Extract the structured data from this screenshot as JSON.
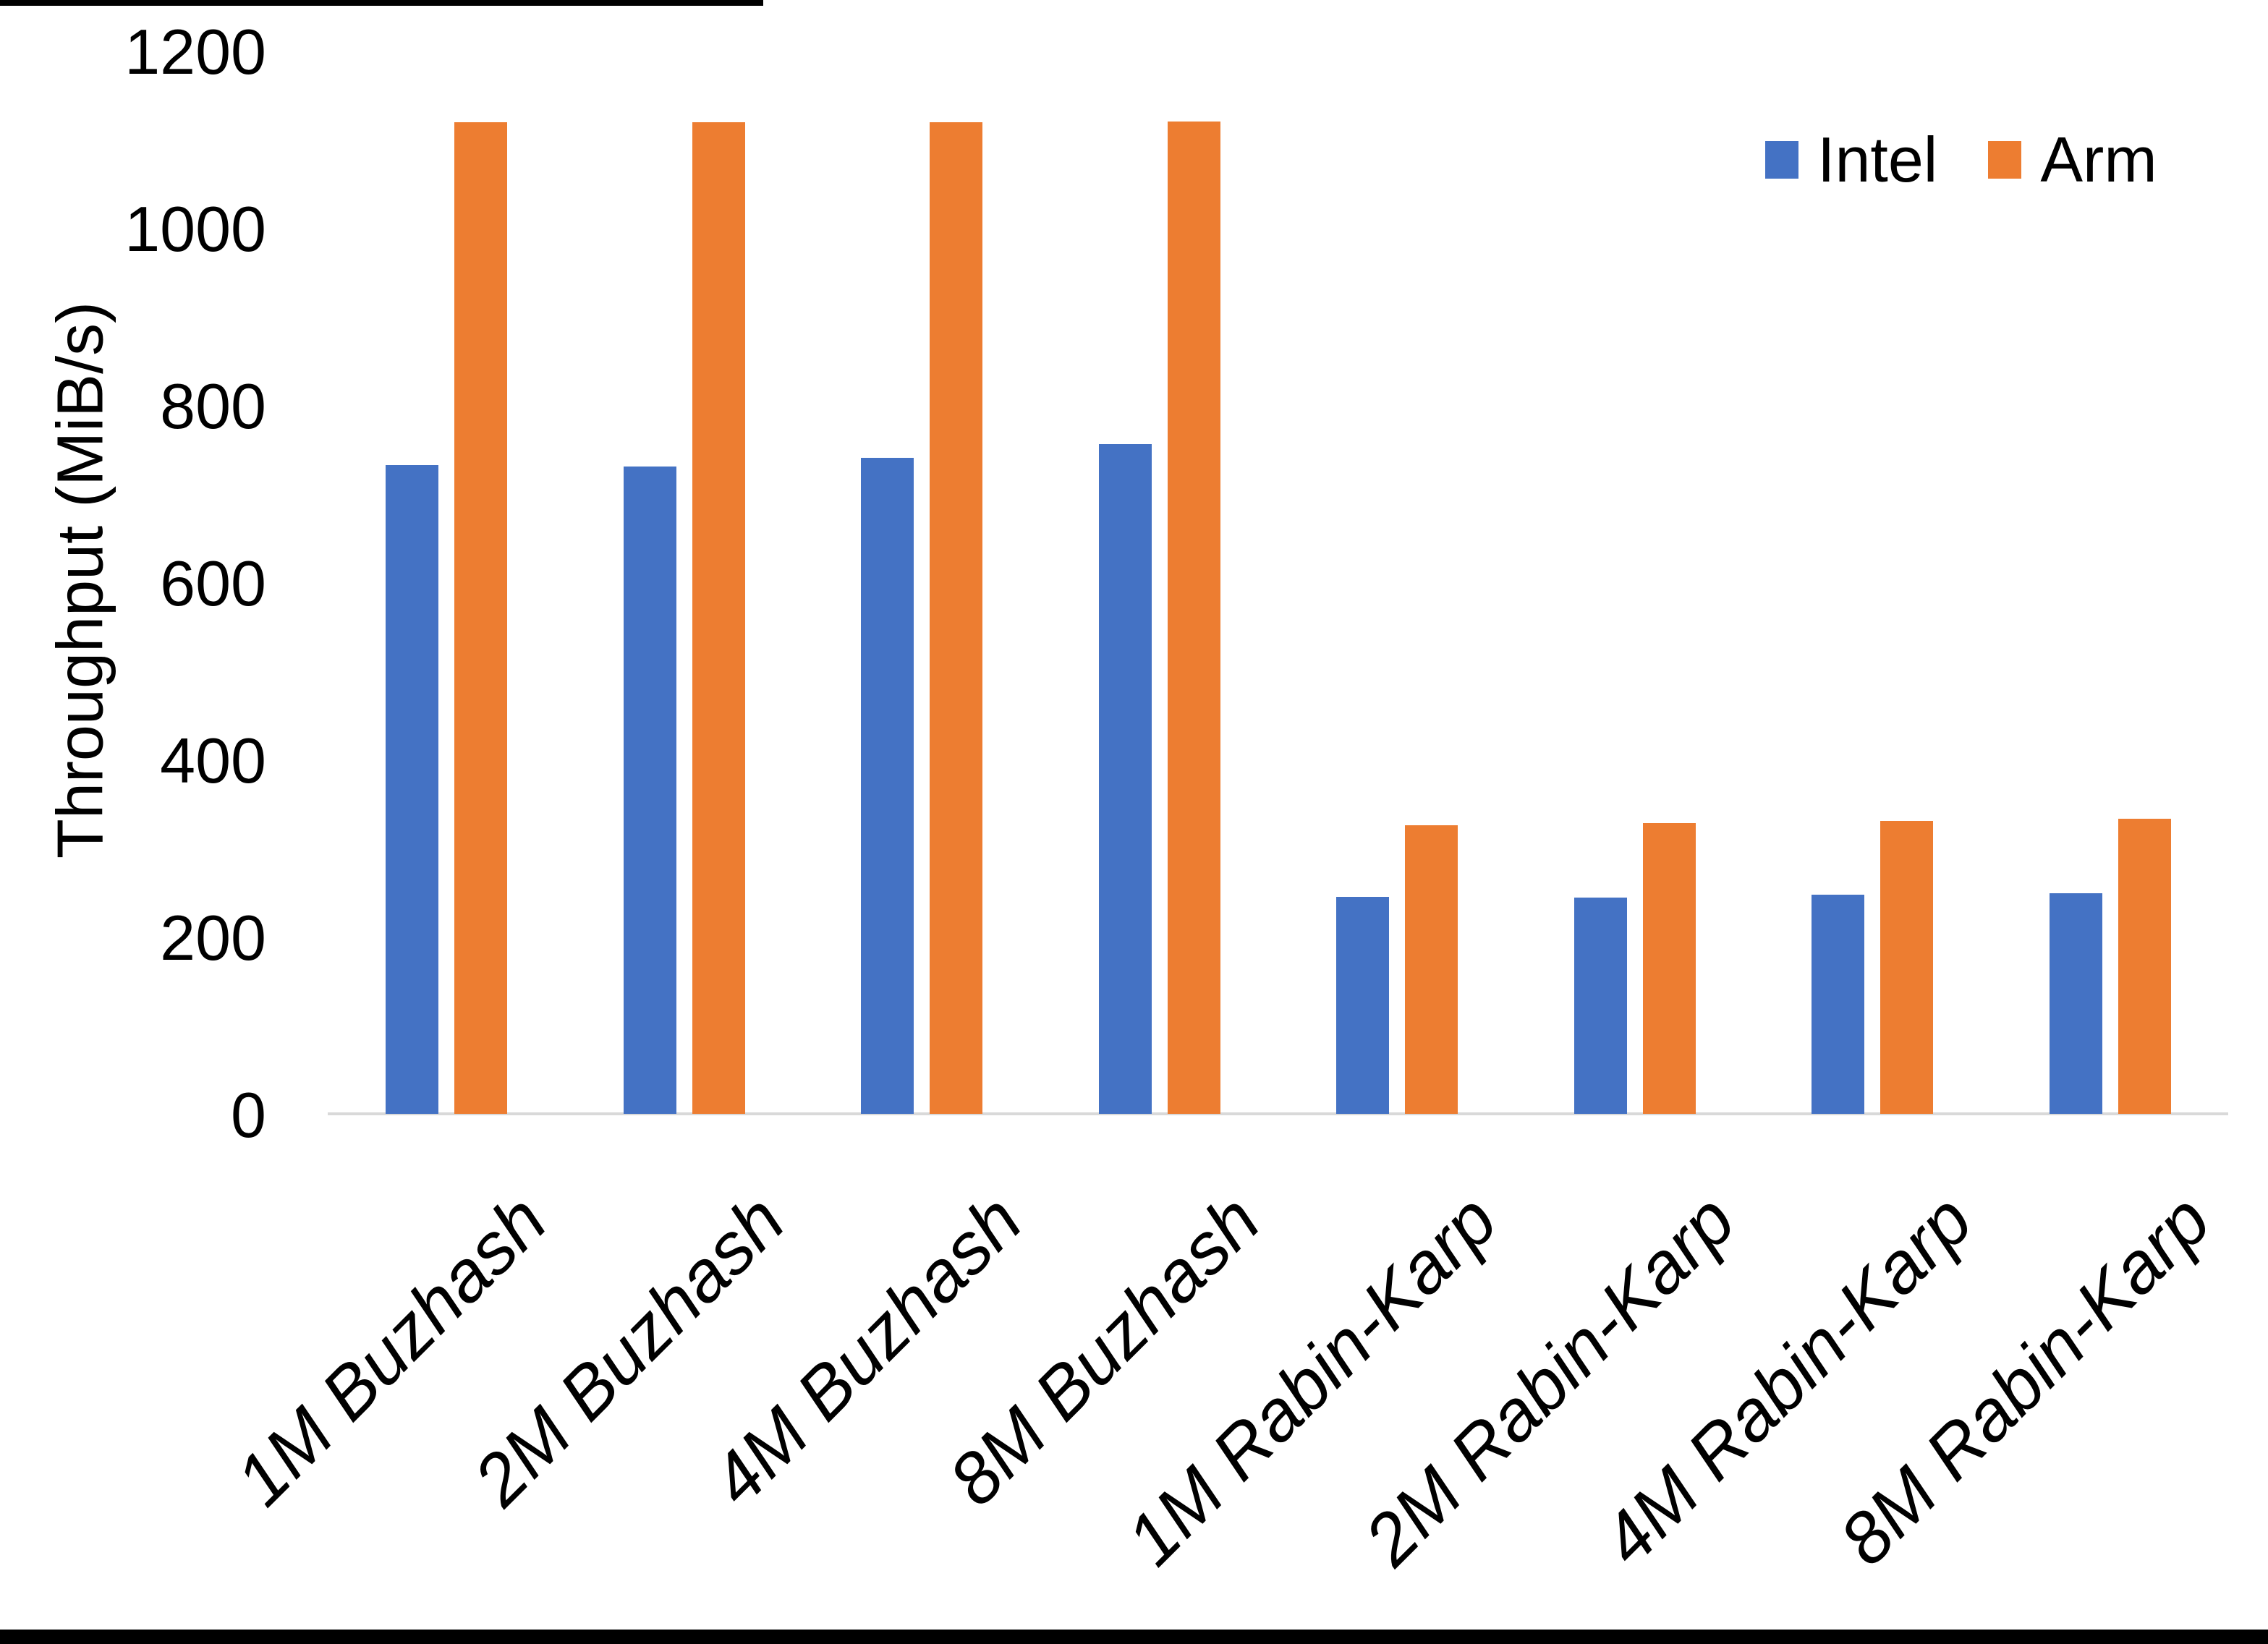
{
  "chart_data": {
    "type": "bar",
    "title": "",
    "categories": [
      "1M Buzhash",
      "2M Buzhash",
      "4M Buzhash",
      "8M Buzhash",
      "1M Rabin-Karp",
      "2M Rabin-Karp",
      "4M Rabin-Karp",
      "8M Rabin-Karp"
    ],
    "series": [
      {
        "name": "Intel",
        "color": "#4472C4",
        "values": [
          732,
          731,
          740,
          756,
          245,
          244,
          247,
          249
        ]
      },
      {
        "name": "Arm",
        "color": "#ED7D31",
        "values": [
          1119,
          1119,
          1119,
          1120,
          326,
          328,
          331,
          333
        ]
      }
    ],
    "xlabel": "",
    "ylabel": "Throughput (MiB/s)",
    "ylim": [
      0,
      1200
    ],
    "yticks": [
      0,
      200,
      400,
      600,
      800,
      1000,
      1200
    ],
    "grid": false,
    "legend_position": "top-right",
    "axis_line_color": "#D9D9D9",
    "text_color": "#000000",
    "background_color": "#FFFFFF"
  }
}
